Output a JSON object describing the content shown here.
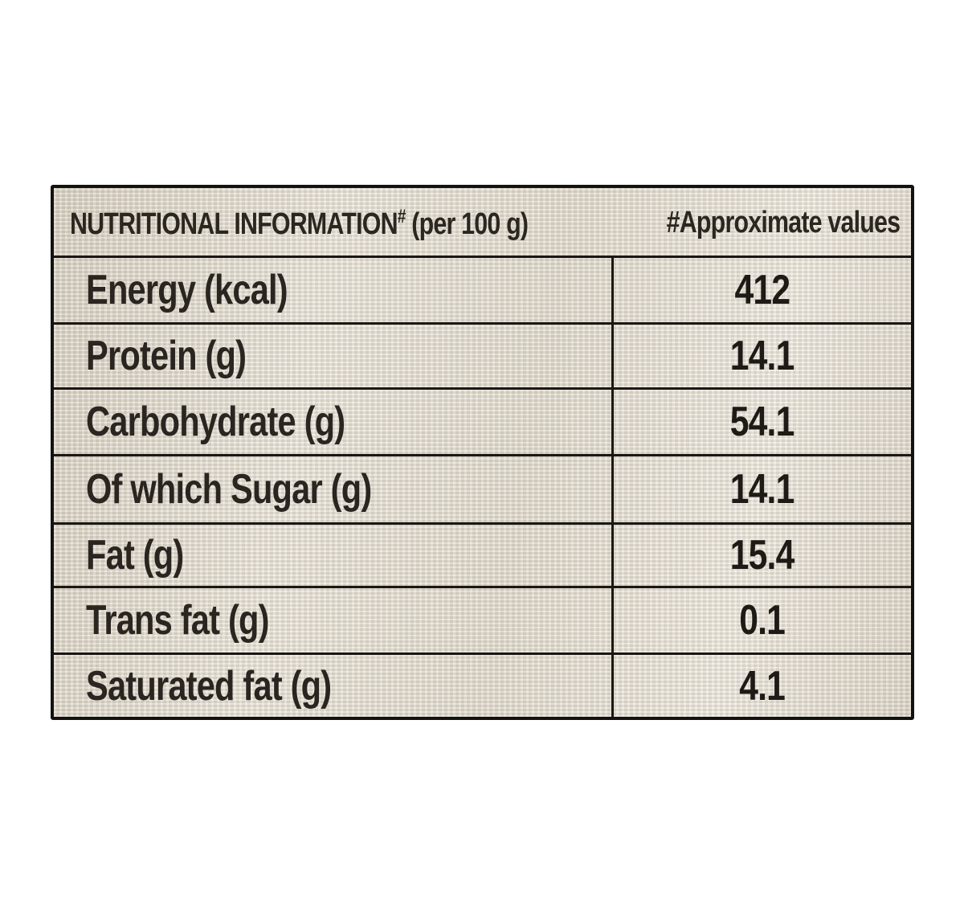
{
  "header": {
    "title": "NUTRITIONAL INFORMATION",
    "title_mark": "#",
    "basis": "(per 100 g)",
    "note": "#Approximate values"
  },
  "rows": [
    {
      "label": "Energy (kcal)",
      "value": "412"
    },
    {
      "label": "Protein (g)",
      "value": "14.1"
    },
    {
      "label": "Carbohydrate (g)",
      "value": "54.1"
    },
    {
      "label": "Of which Sugar (g)",
      "value": "14.1"
    },
    {
      "label": "Fat (g)",
      "value": "15.4"
    },
    {
      "label": "Trans fat (g)",
      "value": "0.1"
    },
    {
      "label": "Saturated fat (g)",
      "value": "4.1"
    }
  ]
}
